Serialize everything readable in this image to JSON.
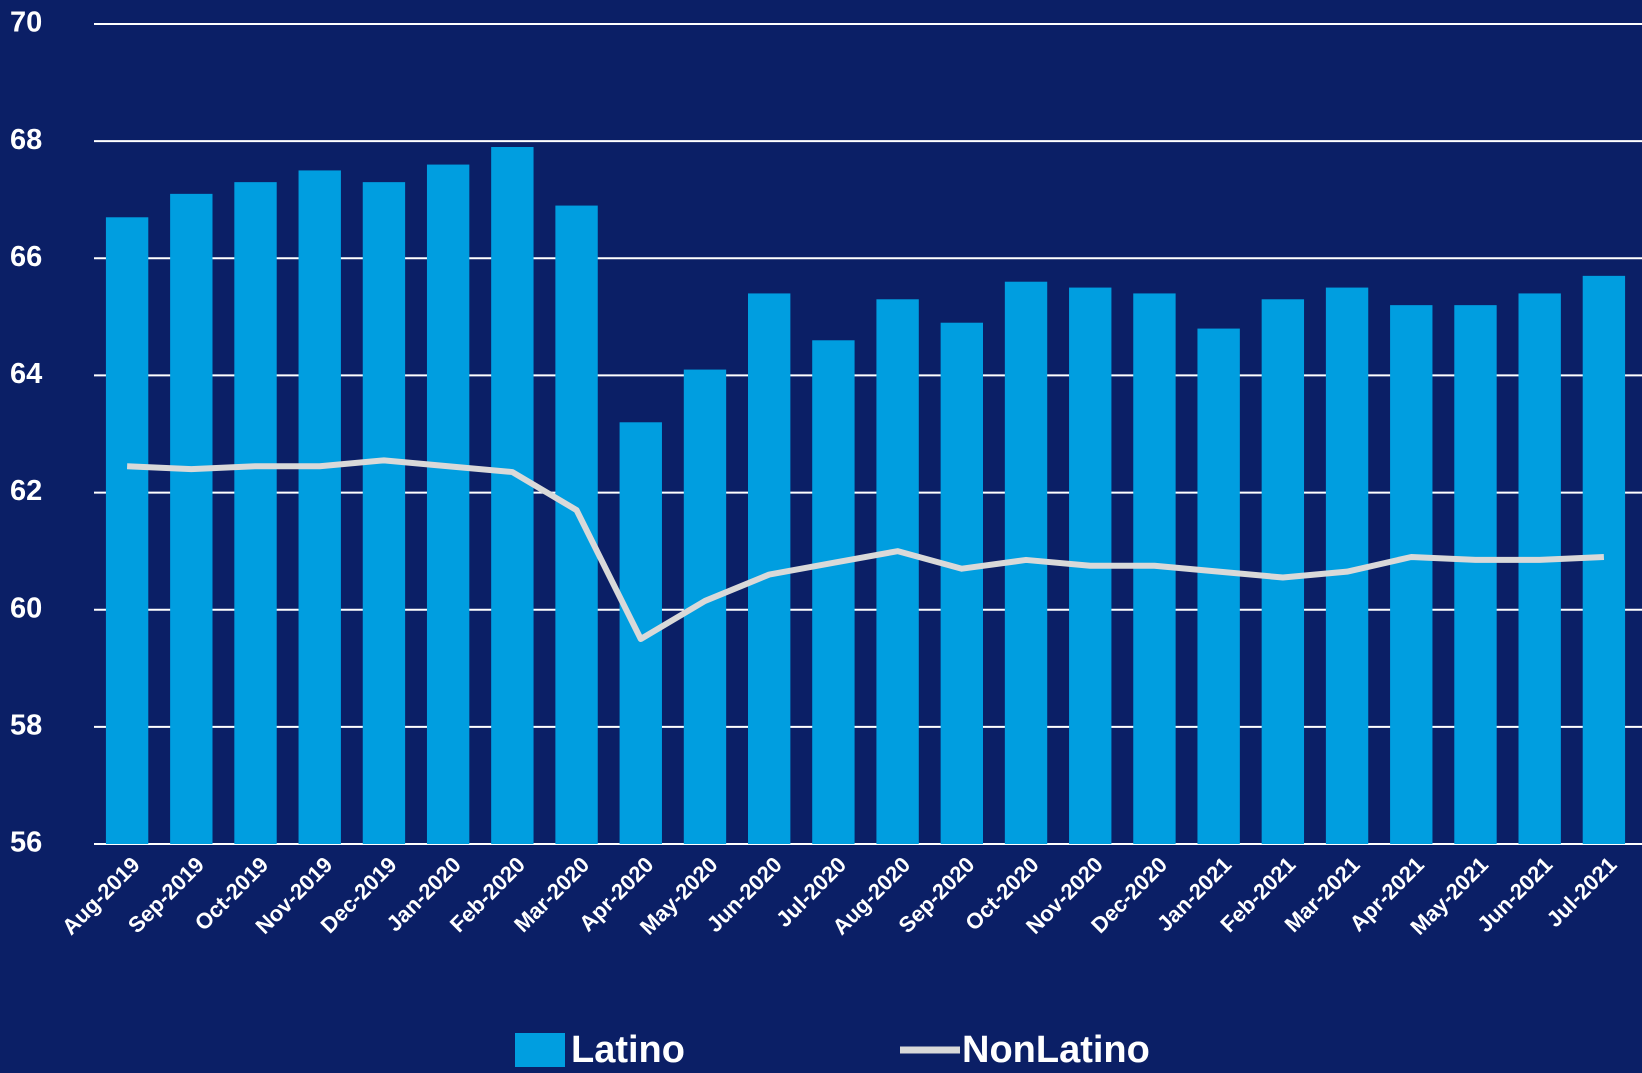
{
  "chart_data": {
    "type": "bar-line",
    "categories": [
      "Aug-2019",
      "Sep-2019",
      "Oct-2019",
      "Nov-2019",
      "Dec-2019",
      "Jan-2020",
      "Feb-2020",
      "Mar-2020",
      "Apr-2020",
      "May-2020",
      "Jun-2020",
      "Jul-2020",
      "Aug-2020",
      "Sep-2020",
      "Oct-2020",
      "Nov-2020",
      "Dec-2020",
      "Jan-2021",
      "Feb-2021",
      "Mar-2021",
      "Apr-2021",
      "May-2021",
      "Jun-2021",
      "Jul-2021"
    ],
    "series": [
      {
        "name": "Latino",
        "type": "bar",
        "color": "#009ee0",
        "values": [
          66.7,
          67.1,
          67.3,
          67.5,
          67.3,
          67.6,
          67.9,
          66.9,
          63.2,
          64.1,
          65.4,
          64.6,
          65.3,
          64.9,
          65.6,
          65.5,
          65.4,
          64.8,
          65.3,
          65.5,
          65.2,
          65.2,
          65.4,
          65.7
        ]
      },
      {
        "name": "NonLatino",
        "type": "line",
        "color": "#d9d9d9",
        "values": [
          62.45,
          62.4,
          62.45,
          62.45,
          62.55,
          62.45,
          62.35,
          61.7,
          59.5,
          60.15,
          60.6,
          60.8,
          61.0,
          60.7,
          60.85,
          60.75,
          60.75,
          60.65,
          60.55,
          60.65,
          60.9,
          60.85,
          60.85,
          60.9
        ]
      }
    ],
    "ylim": [
      56,
      70
    ],
    "yticks": [
      56,
      58,
      60,
      62,
      64,
      66,
      68,
      70
    ],
    "grid": true,
    "legend": "bottom"
  }
}
